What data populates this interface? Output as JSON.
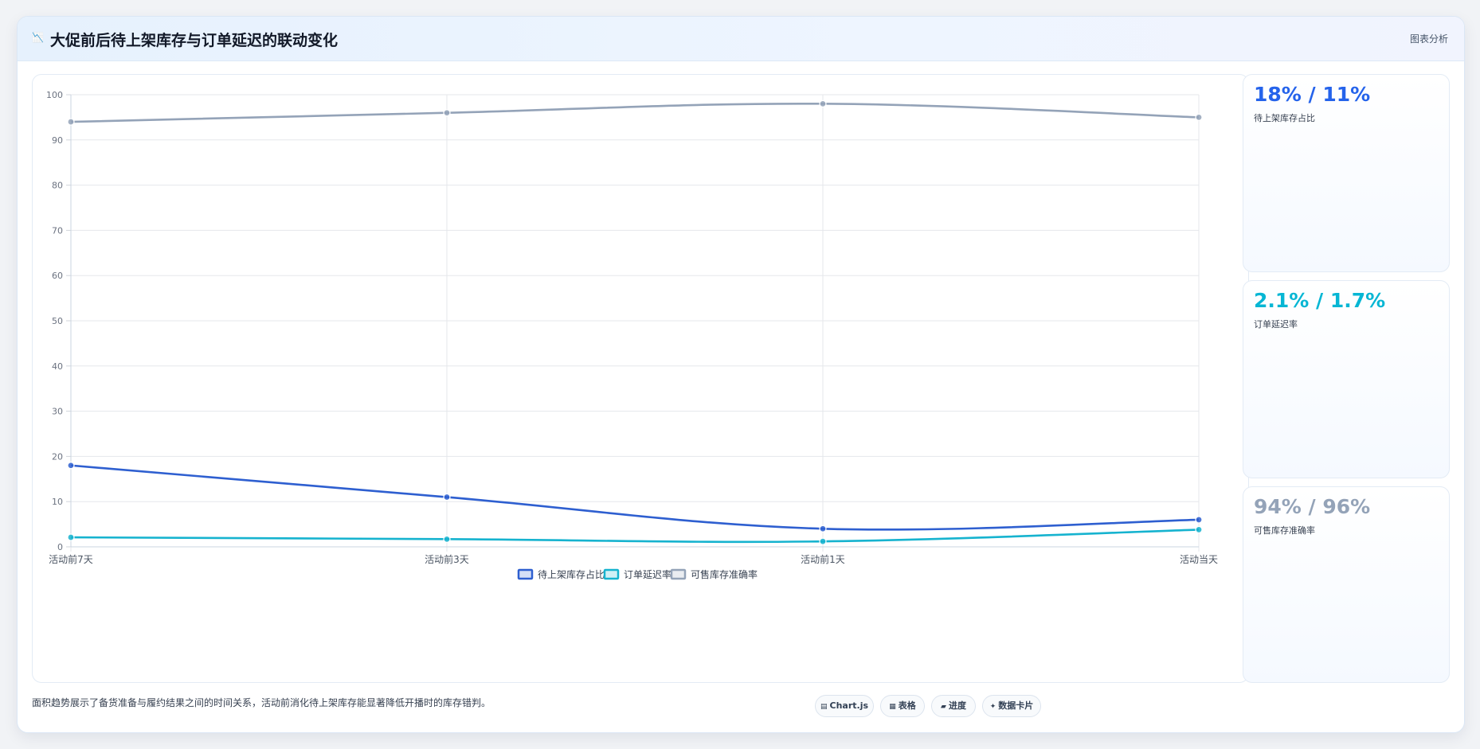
{
  "header": {
    "icon": "📉",
    "title": "大促前后待上架库存与订单延迟的联动变化",
    "tag": "图表分析"
  },
  "stats": [
    {
      "value": "18% / 11%",
      "label": "待上架库存占比",
      "color": "#2563eb"
    },
    {
      "value": "2.1% / 1.7%",
      "label": "订单延迟率",
      "color": "#06b6d4"
    },
    {
      "value": "94% / 96%",
      "label": "可售库存准确率",
      "color": "#94a3b8"
    }
  ],
  "footer": {
    "note": "面积趋势展示了备货准备与履约结果之间的时间关系，活动前消化待上架库存能显著降低开播时的库存错判。",
    "chips": [
      {
        "icon": "▤",
        "label": "Chart.js"
      },
      {
        "icon": "▦",
        "label": "表格"
      },
      {
        "icon": "▰",
        "label": "进度"
      },
      {
        "icon": "✦",
        "label": "数据卡片"
      }
    ]
  },
  "chart_data": {
    "type": "line",
    "categories": [
      "活动前7天",
      "活动前3天",
      "活动前1天",
      "活动当天"
    ],
    "ylim": [
      0,
      100
    ],
    "yticks": [
      0,
      10,
      20,
      30,
      40,
      50,
      60,
      70,
      80,
      90,
      100
    ],
    "grid": true,
    "legend_position": "bottom",
    "series": [
      {
        "name": "待上架库存占比",
        "values": [
          18,
          11,
          4,
          6
        ],
        "color": "#2e5fd0"
      },
      {
        "name": "订单延迟率",
        "values": [
          2.1,
          1.7,
          1.2,
          3.8
        ],
        "color": "#16b3cf"
      },
      {
        "name": "可售库存准确率",
        "values": [
          94,
          96,
          98,
          95
        ],
        "color": "#94a3b8"
      }
    ]
  }
}
